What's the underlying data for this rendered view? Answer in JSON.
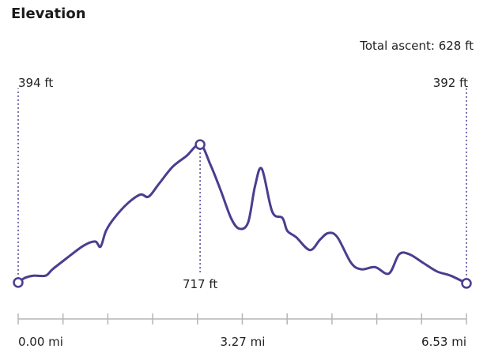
{
  "title": "Elevation",
  "total_ascent_label": "Total ascent: 628 ft",
  "colors": {
    "line": "#4b3d8f",
    "axis": "#b5b5b5",
    "text": "#222222"
  },
  "chart_data": {
    "type": "line",
    "xlabel": "",
    "ylabel": "",
    "x_ticks": [
      {
        "value": 0.0,
        "label": "0.00 mi"
      },
      {
        "value": 3.27,
        "label": "3.27 mi"
      },
      {
        "value": 6.53,
        "label": "6.53 mi"
      }
    ],
    "x_range": [
      0,
      6.53
    ],
    "y_range": [
      0,
      1000
    ],
    "markers": [
      {
        "x": 0.0,
        "y": 394,
        "label": "394 ft",
        "label_side": "above"
      },
      {
        "x": 2.65,
        "y": 717,
        "label": "717 ft",
        "label_side": "below"
      },
      {
        "x": 6.53,
        "y": 392,
        "label": "392 ft",
        "label_side": "above"
      }
    ],
    "series": [
      {
        "x": [
          0.0,
          0.1,
          0.22,
          0.4,
          0.5,
          0.7,
          0.95,
          1.12,
          1.2,
          1.28,
          1.4,
          1.6,
          1.78,
          1.9,
          2.05,
          2.25,
          2.45,
          2.65,
          2.8,
          2.95,
          3.1,
          3.22,
          3.35,
          3.45,
          3.55,
          3.7,
          3.85,
          3.92,
          4.05,
          4.25,
          4.4,
          4.52,
          4.65,
          4.85,
          5.0,
          5.2,
          5.4,
          5.55,
          5.7,
          5.9,
          6.1,
          6.3,
          6.53
        ],
        "y": [
          394,
          405,
          410,
          410,
          425,
          450,
          480,
          490,
          478,
          515,
          545,
          580,
          600,
          595,
          625,
          665,
          690,
          717,
          670,
          610,
          545,
          520,
          535,
          620,
          660,
          560,
          545,
          515,
          500,
          470,
          495,
          510,
          500,
          440,
          425,
          430,
          415,
          460,
          460,
          440,
          420,
          410,
          392
        ]
      }
    ]
  }
}
